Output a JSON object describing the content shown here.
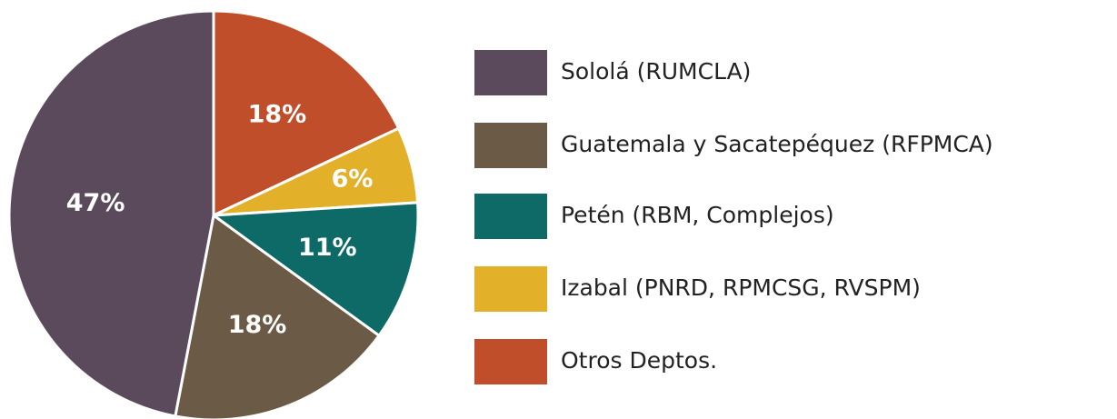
{
  "chart_data": {
    "type": "pie",
    "categories": [
      "Sololá (RUMCLA)",
      "Guatemala y Sacatepéquez (RFPMCA)",
      "Petén (RBM, Complejos)",
      "Izabal (PNRD, RPMCSG, RVSPM)",
      "Otros Deptos."
    ],
    "values": [
      47,
      18,
      11,
      6,
      18
    ],
    "value_labels": [
      "47%",
      "18%",
      "11%",
      "6%",
      "18%"
    ],
    "colors": [
      "#5a4a5b",
      "#6b5a45",
      "#0d6a67",
      "#e3b02a",
      "#c04e2a"
    ]
  }
}
